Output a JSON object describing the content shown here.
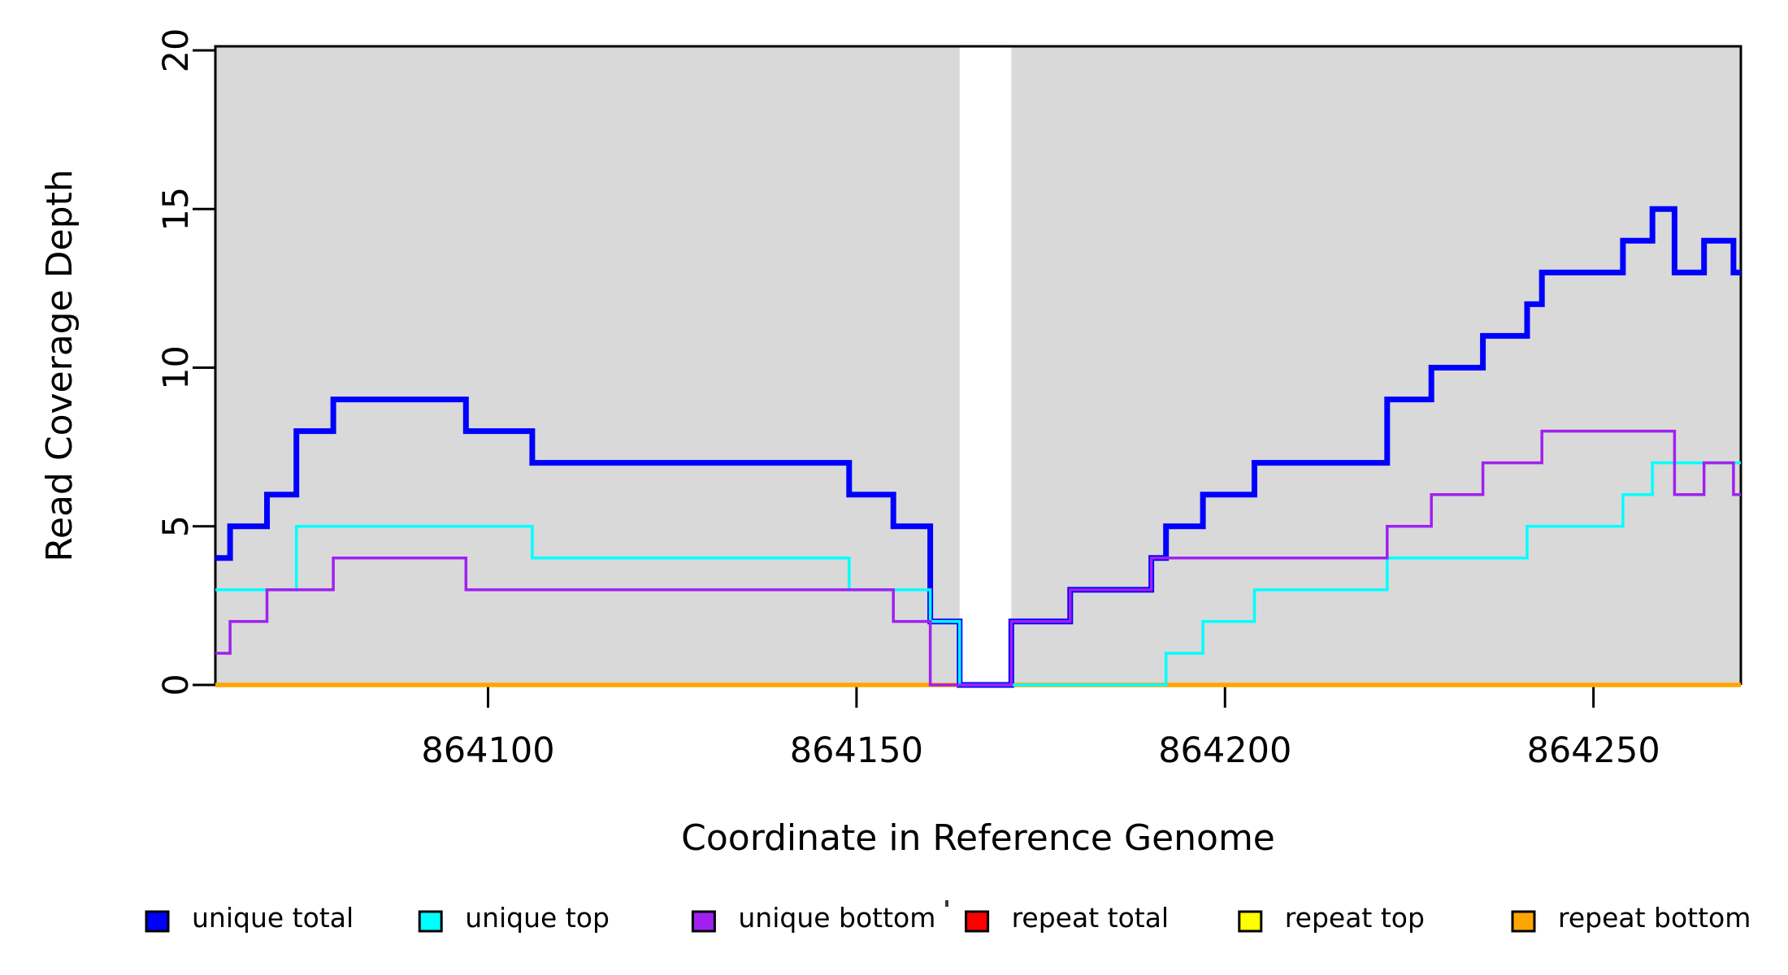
{
  "chart_data": {
    "type": "line",
    "subtype": "step-coverage",
    "title": "",
    "xlabel": "Coordinate in Reference Genome",
    "ylabel": "Read Coverage Depth",
    "xlim": [
      864063,
      864270
    ],
    "ylim": [
      0,
      20
    ],
    "x_ticks": [
      864100,
      864150,
      864200,
      864250
    ],
    "y_ticks": [
      0,
      5,
      10,
      15,
      20
    ],
    "grid": false,
    "legend_position": "bottom",
    "background_color": "#ffffff",
    "panel_region_color": "#D9D9D9",
    "axis_color": "#000000",
    "shaded_regions": [
      {
        "from": 864063,
        "to": 864164
      },
      {
        "from": 864171,
        "to": 864270
      }
    ],
    "x_end": 864270,
    "series": [
      {
        "name": "unique total",
        "color": "#0000FF",
        "width": 7,
        "breakpoints": [
          [
            864063,
            4
          ],
          [
            864065,
            5
          ],
          [
            864070,
            6
          ],
          [
            864074,
            8
          ],
          [
            864079,
            9
          ],
          [
            864097,
            8
          ],
          [
            864106,
            7
          ],
          [
            864149,
            6
          ],
          [
            864155,
            5
          ],
          [
            864160,
            2
          ],
          [
            864164,
            0
          ],
          [
            864171,
            2
          ],
          [
            864179,
            3
          ],
          [
            864190,
            4
          ],
          [
            864192,
            5
          ],
          [
            864197,
            6
          ],
          [
            864204,
            7
          ],
          [
            864222,
            9
          ],
          [
            864228,
            10
          ],
          [
            864235,
            11
          ],
          [
            864241,
            12
          ],
          [
            864243,
            13
          ],
          [
            864254,
            14
          ],
          [
            864258,
            15
          ],
          [
            864261,
            13
          ],
          [
            864265,
            14
          ],
          [
            864269,
            13
          ]
        ]
      },
      {
        "name": "unique top",
        "color": "#00FFFF",
        "width": 3.5,
        "breakpoints": [
          [
            864063,
            3
          ],
          [
            864074,
            5
          ],
          [
            864106,
            4
          ],
          [
            864149,
            3
          ],
          [
            864160,
            2
          ],
          [
            864164,
            0
          ],
          [
            864192,
            1
          ],
          [
            864197,
            2
          ],
          [
            864204,
            3
          ],
          [
            864222,
            4
          ],
          [
            864241,
            5
          ],
          [
            864254,
            6
          ],
          [
            864258,
            7
          ]
        ]
      },
      {
        "name": "unique bottom",
        "color": "#A020F0",
        "width": 3.5,
        "breakpoints": [
          [
            864063,
            1
          ],
          [
            864065,
            2
          ],
          [
            864070,
            3
          ],
          [
            864079,
            4
          ],
          [
            864097,
            3
          ],
          [
            864155,
            2
          ],
          [
            864160,
            0
          ],
          [
            864171,
            2
          ],
          [
            864179,
            3
          ],
          [
            864190,
            4
          ],
          [
            864222,
            5
          ],
          [
            864228,
            6
          ],
          [
            864235,
            7
          ],
          [
            864243,
            8
          ],
          [
            864261,
            6
          ],
          [
            864265,
            7
          ],
          [
            864269,
            6
          ]
        ]
      },
      {
        "name": "repeat total",
        "color": "#FF0000",
        "width": 3.5,
        "breakpoints": [
          [
            864063,
            0
          ]
        ]
      },
      {
        "name": "repeat top",
        "color": "#FFFF00",
        "width": 3.5,
        "breakpoints": [
          [
            864063,
            0
          ]
        ]
      },
      {
        "name": "repeat bottom",
        "color": "#FFA500",
        "width": 5.5,
        "breakpoints": [
          [
            864063,
            0
          ]
        ]
      }
    ],
    "draw_order": [
      "repeat total",
      "repeat top",
      "repeat bottom",
      "unique total",
      "unique top",
      "unique bottom"
    ]
  }
}
